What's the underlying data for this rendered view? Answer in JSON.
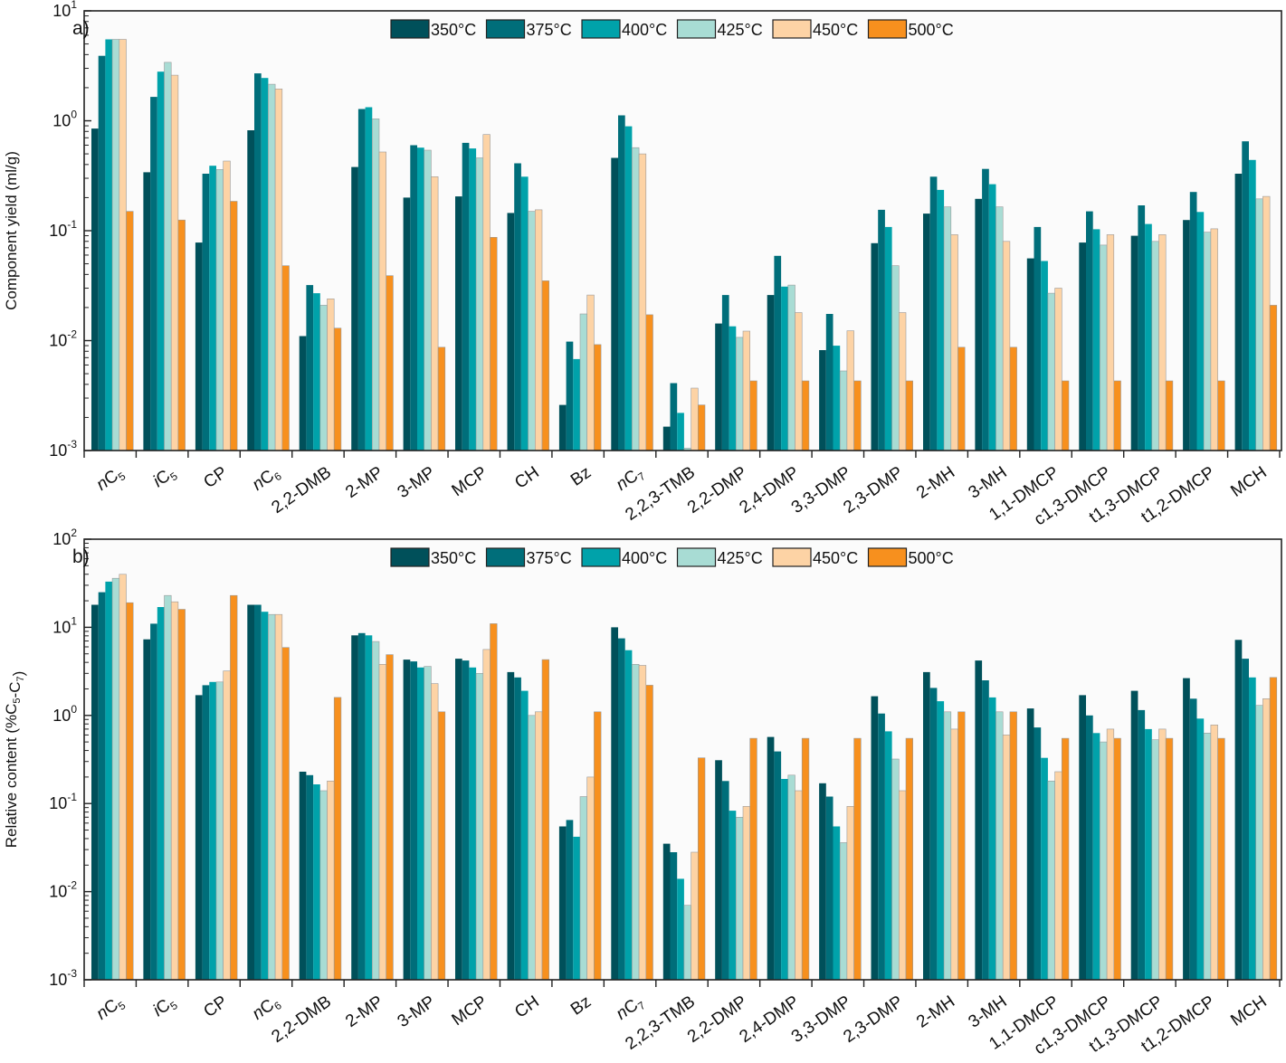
{
  "series_names": [
    "350°C",
    "375°C",
    "400°C",
    "425°C",
    "450°C",
    "500°C"
  ],
  "series_colors": [
    "#00505a",
    "#006e7a",
    "#00a2aa",
    "#a8dcd4",
    "#fdd3a5",
    "#f7901e"
  ],
  "categories": [
    "nC5",
    "iC5",
    "CP",
    "nC6",
    "2,2-DMB",
    "2-MP",
    "3-MP",
    "MCP",
    "CH",
    "Bz",
    "nC7",
    "2,2,3-TMB",
    "2,2-DMP",
    "2,4-DMP",
    "3,3-DMP",
    "2,3-DMP",
    "2-MH",
    "3-MH",
    "1,1-DMCP",
    "c1,3-DMCP",
    "t1,3-DMCP",
    "t1,2-DMCP",
    "MCH"
  ],
  "chart_data": [
    {
      "type": "bar",
      "panel_label": "a)",
      "ylabel": "Component yield (ml/g)",
      "xlabel": "",
      "yscale": "log",
      "ylim": [
        0.001,
        10
      ],
      "ytick_exponents": [
        1,
        0,
        -1,
        -2,
        -3
      ],
      "legend": "top-center",
      "grid": false,
      "series": [
        {
          "name": "350°C",
          "values": [
            0.85,
            0.34,
            0.078,
            0.82,
            0.011,
            0.38,
            0.2,
            0.205,
            0.145,
            0.0026,
            0.46,
            0.00165,
            0.0143,
            0.026,
            0.0082,
            0.077,
            0.143,
            0.195,
            0.056,
            0.078,
            0.09,
            0.125,
            0.33
          ]
        },
        {
          "name": "375°C",
          "values": [
            3.9,
            1.65,
            0.33,
            2.7,
            0.032,
            1.28,
            0.6,
            0.63,
            0.41,
            0.0098,
            1.12,
            0.0041,
            0.026,
            0.059,
            0.0175,
            0.155,
            0.31,
            0.365,
            0.108,
            0.15,
            0.17,
            0.225,
            0.65
          ]
        },
        {
          "name": "400°C",
          "values": [
            5.5,
            2.8,
            0.39,
            2.45,
            0.027,
            1.33,
            0.57,
            0.56,
            0.31,
            0.0068,
            0.89,
            0.0022,
            0.0135,
            0.031,
            0.009,
            0.108,
            0.235,
            0.265,
            0.053,
            0.103,
            0.115,
            0.148,
            0.44
          ]
        },
        {
          "name": "425°C",
          "values": [
            5.5,
            3.4,
            0.36,
            2.15,
            0.021,
            1.04,
            0.54,
            0.46,
            0.15,
            0.0175,
            0.57,
            0.00105,
            0.0107,
            0.032,
            0.0053,
            0.048,
            0.165,
            0.165,
            0.027,
            0.074,
            0.08,
            0.097,
            0.195
          ]
        },
        {
          "name": "450°C",
          "values": [
            5.5,
            2.6,
            0.43,
            1.95,
            0.024,
            0.52,
            0.31,
            0.75,
            0.155,
            0.026,
            0.5,
            0.0037,
            0.0122,
            0.018,
            0.0123,
            0.018,
            0.092,
            0.08,
            0.03,
            0.092,
            0.092,
            0.104,
            0.205
          ]
        },
        {
          "name": "500°C",
          "values": [
            0.15,
            0.125,
            0.185,
            0.048,
            0.013,
            0.039,
            0.0087,
            0.087,
            0.035,
            0.0092,
            0.0172,
            0.0026,
            0.0043,
            0.0043,
            0.0043,
            0.0043,
            0.0087,
            0.0087,
            0.0043,
            0.0043,
            0.0043,
            0.0043,
            0.021
          ]
        }
      ]
    },
    {
      "type": "bar",
      "panel_label": "b)",
      "ylabel": "Relative content (%C5-C7)",
      "xlabel": "",
      "yscale": "log",
      "ylim": [
        0.001,
        100
      ],
      "ytick_exponents": [
        2,
        1,
        0,
        -1,
        -2,
        -3
      ],
      "legend": "top-center",
      "grid": false,
      "series": [
        {
          "name": "350°C",
          "values": [
            18,
            7.3,
            1.7,
            18,
            0.23,
            8.1,
            4.3,
            4.4,
            3.1,
            0.055,
            10,
            0.035,
            0.31,
            0.57,
            0.17,
            1.65,
            3.1,
            4.2,
            1.2,
            1.7,
            1.9,
            2.65,
            7.2
          ]
        },
        {
          "name": "375°C",
          "values": [
            25,
            11,
            2.2,
            18,
            0.21,
            8.6,
            4.1,
            4.2,
            2.7,
            0.065,
            7.5,
            0.028,
            0.18,
            0.39,
            0.12,
            1.05,
            2.05,
            2.5,
            0.73,
            1.0,
            1.15,
            1.55,
            4.4
          ]
        },
        {
          "name": "400°C",
          "values": [
            33,
            17,
            2.4,
            15,
            0.165,
            8.1,
            3.5,
            3.5,
            1.9,
            0.042,
            5.5,
            0.014,
            0.083,
            0.19,
            0.055,
            0.66,
            1.45,
            1.6,
            0.33,
            0.63,
            0.7,
            0.92,
            2.7
          ]
        },
        {
          "name": "425°C",
          "values": [
            36,
            23,
            2.4,
            14,
            0.14,
            6.9,
            3.6,
            3.0,
            1.0,
            0.12,
            3.8,
            0.007,
            0.07,
            0.21,
            0.036,
            0.32,
            1.1,
            1.1,
            0.18,
            0.5,
            0.53,
            0.63,
            1.3
          ]
        },
        {
          "name": "450°C",
          "values": [
            40,
            19.5,
            3.2,
            14,
            0.18,
            3.8,
            2.3,
            5.6,
            1.1,
            0.2,
            3.7,
            0.028,
            0.093,
            0.14,
            0.093,
            0.14,
            0.7,
            0.6,
            0.23,
            0.7,
            0.7,
            0.78,
            1.55
          ]
        },
        {
          "name": "500°C",
          "values": [
            19,
            16,
            23,
            5.9,
            1.6,
            4.9,
            1.1,
            11,
            4.3,
            1.1,
            2.2,
            0.33,
            0.55,
            0.55,
            0.55,
            0.55,
            1.1,
            1.1,
            0.55,
            0.55,
            0.55,
            0.55,
            2.7
          ]
        }
      ]
    }
  ]
}
